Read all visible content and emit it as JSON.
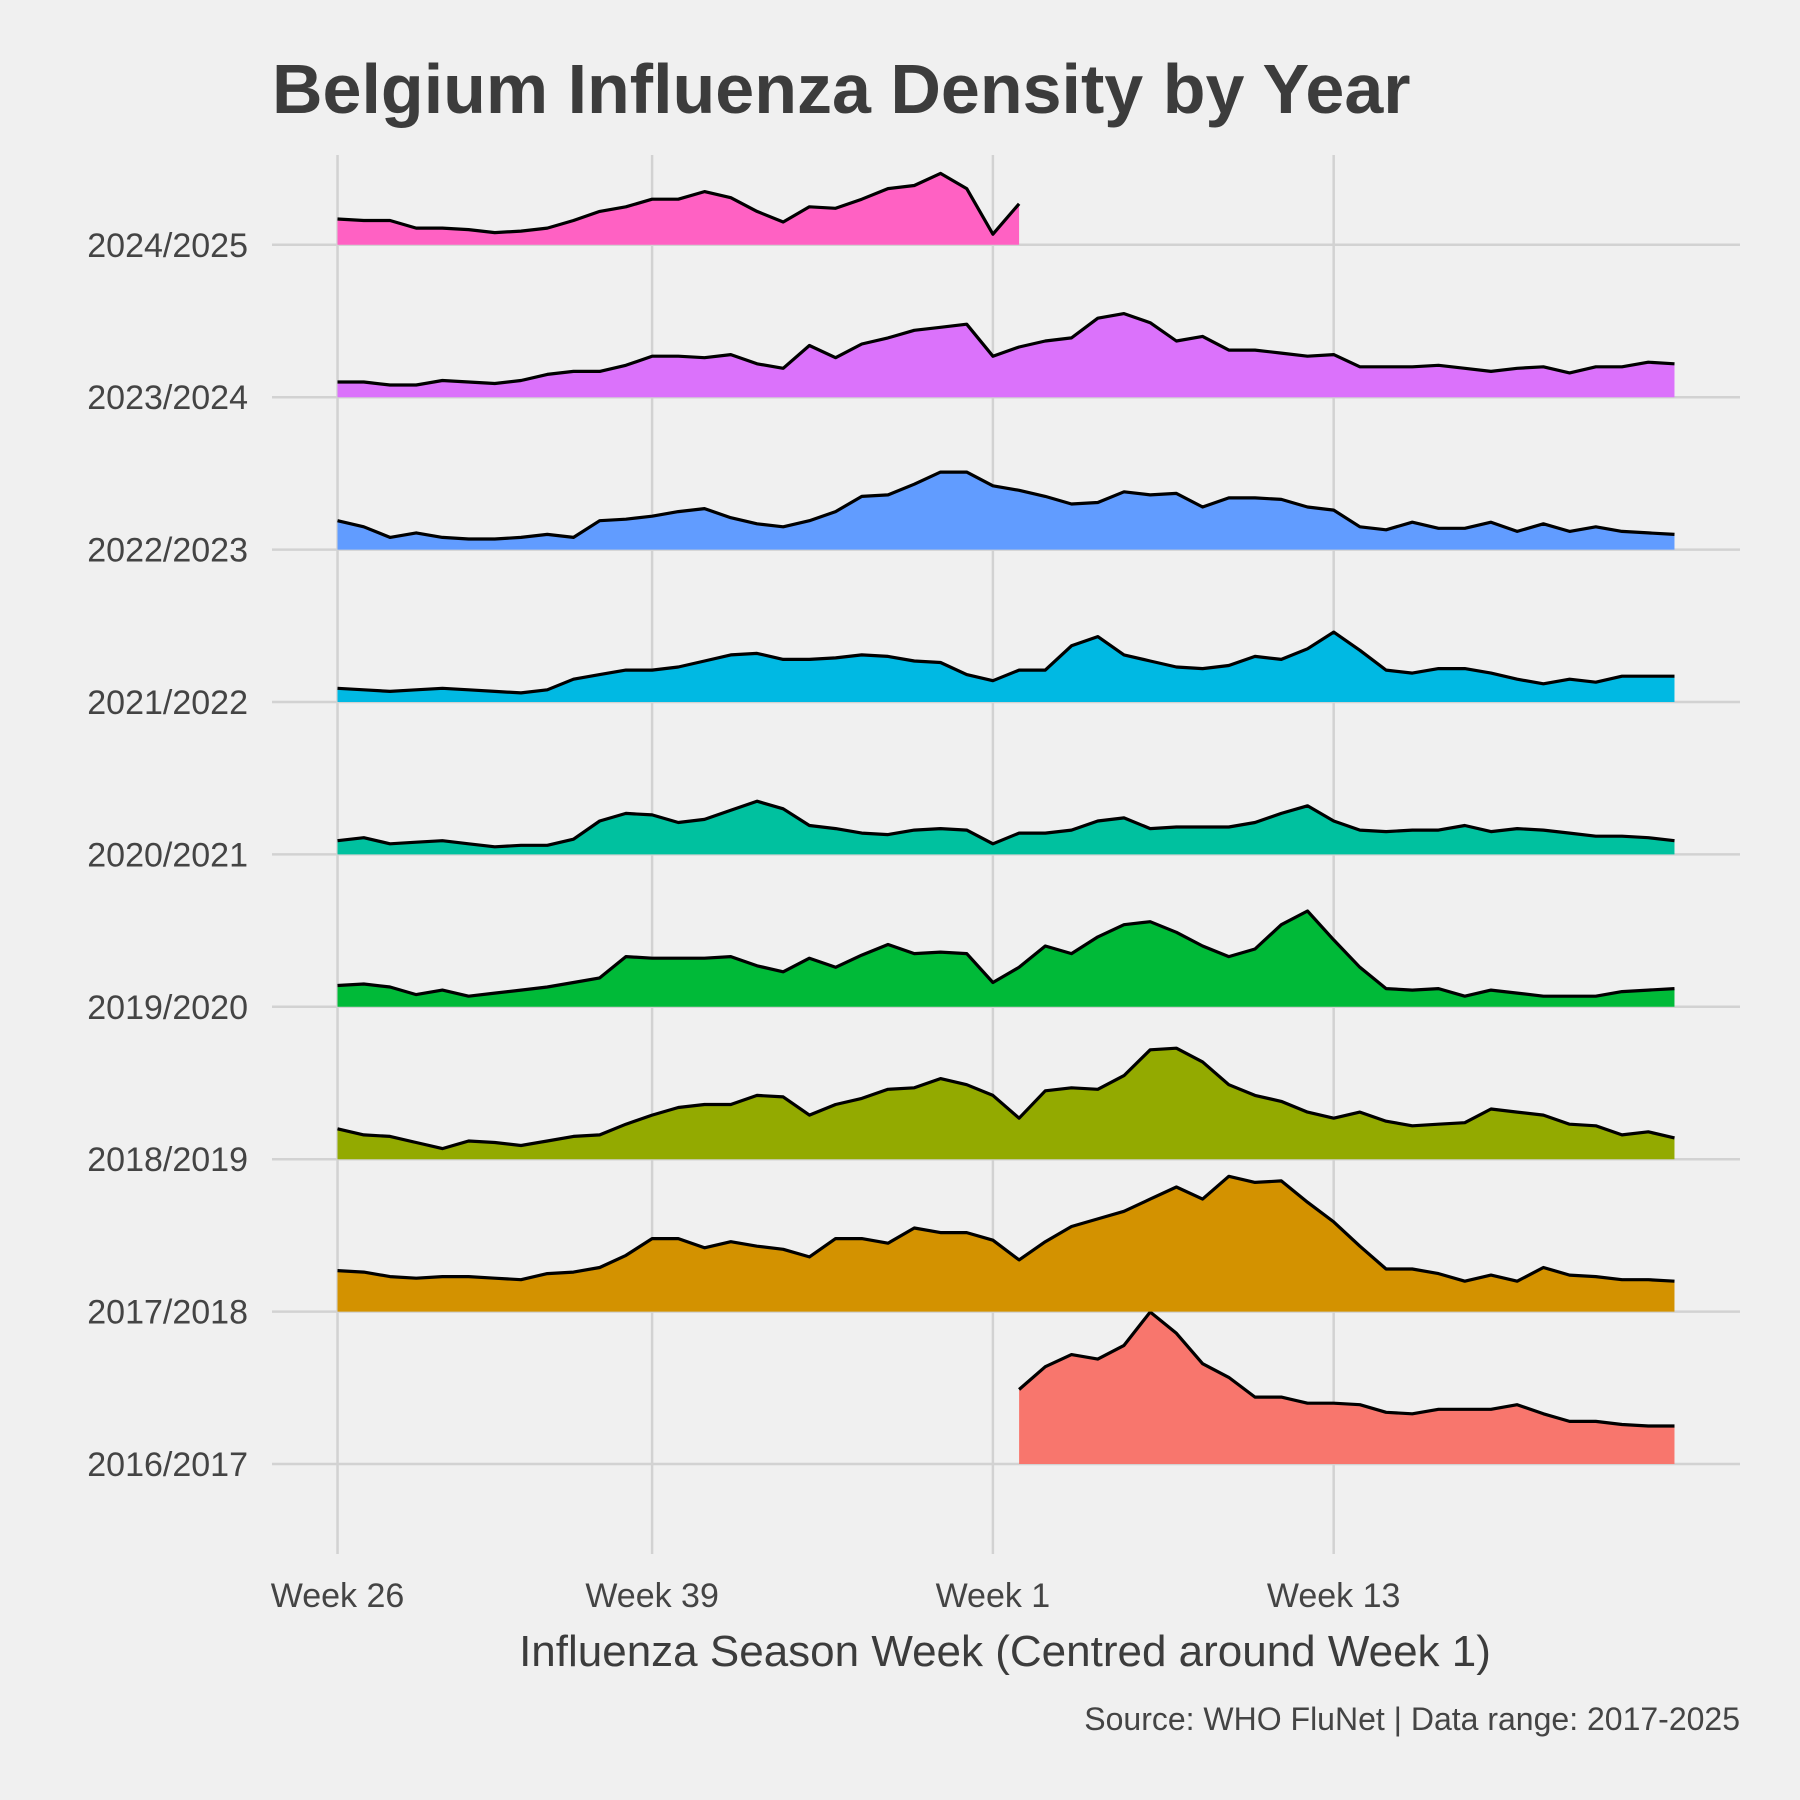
{
  "chart_data": {
    "type": "area",
    "title": "Belgium Influenza Density by Year",
    "xlabel": "Influenza Season Week (Centred around Week 1)",
    "ylabel": "",
    "caption": "Source: WHO FluNet | Data range: 2017-2025",
    "x_ticks": [
      {
        "label": "Week 26",
        "index": 0
      },
      {
        "label": "Week 39",
        "index": 12
      },
      {
        "label": "Week 1",
        "index": 25
      },
      {
        "label": "Week 13",
        "index": 38
      }
    ],
    "x_range": [
      -2.5,
      53.5
    ],
    "weeks_in_season": 52,
    "grid": true,
    "legend": "none",
    "series": [
      {
        "name": "2016/2017",
        "color": "#F8766D",
        "start": 26,
        "values": [
          0.49,
          0.64,
          0.72,
          0.69,
          0.78,
          1.0,
          0.86,
          0.66,
          0.57,
          0.44,
          0.44,
          0.4,
          0.4,
          0.39,
          0.34,
          0.33,
          0.36,
          0.36,
          0.36,
          0.39,
          0.33,
          0.28,
          0.28,
          0.26,
          0.25,
          0.25
        ]
      },
      {
        "name": "2017/2018",
        "color": "#D39200",
        "start": 0,
        "values": [
          0.27,
          0.26,
          0.23,
          0.22,
          0.23,
          0.23,
          0.22,
          0.21,
          0.25,
          0.26,
          0.29,
          0.37,
          0.48,
          0.48,
          0.42,
          0.46,
          0.43,
          0.41,
          0.36,
          0.48,
          0.48,
          0.45,
          0.55,
          0.52,
          0.52,
          0.47,
          0.34,
          0.46,
          0.56,
          0.61,
          0.66,
          0.74,
          0.82,
          0.74,
          0.89,
          0.85,
          0.86,
          0.72,
          0.59,
          0.43,
          0.28,
          0.28,
          0.25,
          0.2,
          0.24,
          0.2,
          0.29,
          0.24,
          0.23,
          0.21,
          0.21,
          0.2
        ]
      },
      {
        "name": "2018/2019",
        "color": "#93AA00",
        "start": 0,
        "values": [
          0.2,
          0.16,
          0.15,
          0.11,
          0.07,
          0.12,
          0.11,
          0.09,
          0.12,
          0.15,
          0.16,
          0.23,
          0.29,
          0.34,
          0.36,
          0.36,
          0.42,
          0.41,
          0.29,
          0.36,
          0.4,
          0.46,
          0.47,
          0.53,
          0.49,
          0.42,
          0.27,
          0.45,
          0.47,
          0.46,
          0.55,
          0.72,
          0.73,
          0.64,
          0.49,
          0.42,
          0.38,
          0.31,
          0.27,
          0.31,
          0.25,
          0.22,
          0.23,
          0.24,
          0.33,
          0.31,
          0.29,
          0.23,
          0.22,
          0.16,
          0.18,
          0.14
        ]
      },
      {
        "name": "2019/2020",
        "color": "#00BA38",
        "start": 0,
        "values": [
          0.14,
          0.15,
          0.13,
          0.08,
          0.11,
          0.07,
          0.09,
          0.11,
          0.13,
          0.16,
          0.19,
          0.33,
          0.32,
          0.32,
          0.32,
          0.33,
          0.27,
          0.23,
          0.32,
          0.26,
          0.34,
          0.41,
          0.35,
          0.36,
          0.35,
          0.16,
          0.26,
          0.4,
          0.35,
          0.46,
          0.54,
          0.56,
          0.49,
          0.4,
          0.33,
          0.38,
          0.54,
          0.63,
          0.44,
          0.26,
          0.12,
          0.11,
          0.12,
          0.07,
          0.11,
          0.09,
          0.07,
          0.07,
          0.07,
          0.1,
          0.11,
          0.12
        ]
      },
      {
        "name": "2020/2021",
        "color": "#00C19F",
        "start": 0,
        "values": [
          0.09,
          0.11,
          0.07,
          0.08,
          0.09,
          0.07,
          0.05,
          0.06,
          0.06,
          0.1,
          0.22,
          0.27,
          0.26,
          0.21,
          0.23,
          0.29,
          0.35,
          0.3,
          0.19,
          0.17,
          0.14,
          0.13,
          0.16,
          0.17,
          0.16,
          0.07,
          0.14,
          0.14,
          0.16,
          0.22,
          0.24,
          0.17,
          0.18,
          0.18,
          0.18,
          0.21,
          0.27,
          0.32,
          0.22,
          0.16,
          0.15,
          0.16,
          0.16,
          0.19,
          0.15,
          0.17,
          0.16,
          0.14,
          0.12,
          0.12,
          0.11,
          0.09
        ]
      },
      {
        "name": "2021/2022",
        "color": "#00B9E3",
        "start": 0,
        "values": [
          0.09,
          0.08,
          0.07,
          0.08,
          0.09,
          0.08,
          0.07,
          0.06,
          0.08,
          0.15,
          0.18,
          0.21,
          0.21,
          0.23,
          0.27,
          0.31,
          0.32,
          0.28,
          0.28,
          0.29,
          0.31,
          0.3,
          0.27,
          0.26,
          0.18,
          0.14,
          0.21,
          0.21,
          0.37,
          0.43,
          0.31,
          0.27,
          0.23,
          0.22,
          0.24,
          0.3,
          0.28,
          0.35,
          0.46,
          0.34,
          0.21,
          0.19,
          0.22,
          0.22,
          0.19,
          0.15,
          0.12,
          0.15,
          0.13,
          0.17,
          0.17,
          0.17
        ]
      },
      {
        "name": "2022/2023",
        "color": "#619CFF",
        "start": 0,
        "values": [
          0.19,
          0.15,
          0.08,
          0.11,
          0.08,
          0.07,
          0.07,
          0.08,
          0.1,
          0.08,
          0.19,
          0.2,
          0.22,
          0.25,
          0.27,
          0.21,
          0.17,
          0.15,
          0.19,
          0.25,
          0.35,
          0.36,
          0.43,
          0.51,
          0.51,
          0.42,
          0.39,
          0.35,
          0.3,
          0.31,
          0.38,
          0.36,
          0.37,
          0.28,
          0.34,
          0.34,
          0.33,
          0.28,
          0.26,
          0.15,
          0.13,
          0.18,
          0.14,
          0.14,
          0.18,
          0.12,
          0.17,
          0.12,
          0.15,
          0.12,
          0.11,
          0.1
        ]
      },
      {
        "name": "2023/2024",
        "color": "#DB72FB",
        "start": 0,
        "values": [
          0.1,
          0.1,
          0.08,
          0.08,
          0.11,
          0.1,
          0.09,
          0.11,
          0.15,
          0.17,
          0.17,
          0.21,
          0.27,
          0.27,
          0.26,
          0.28,
          0.22,
          0.19,
          0.34,
          0.26,
          0.35,
          0.39,
          0.44,
          0.46,
          0.48,
          0.27,
          0.33,
          0.37,
          0.39,
          0.52,
          0.55,
          0.49,
          0.37,
          0.4,
          0.31,
          0.31,
          0.29,
          0.27,
          0.28,
          0.2,
          0.2,
          0.2,
          0.21,
          0.19,
          0.17,
          0.19,
          0.2,
          0.16,
          0.2,
          0.2,
          0.23,
          0.22
        ]
      },
      {
        "name": "2024/2025",
        "color": "#FF61C3",
        "start": 0,
        "values": [
          0.17,
          0.16,
          0.16,
          0.11,
          0.11,
          0.1,
          0.08,
          0.09,
          0.11,
          0.16,
          0.22,
          0.25,
          0.3,
          0.3,
          0.35,
          0.31,
          0.22,
          0.15,
          0.25,
          0.24,
          0.3,
          0.37,
          0.39,
          0.47,
          0.37,
          0.07,
          0.27
        ]
      }
    ]
  }
}
